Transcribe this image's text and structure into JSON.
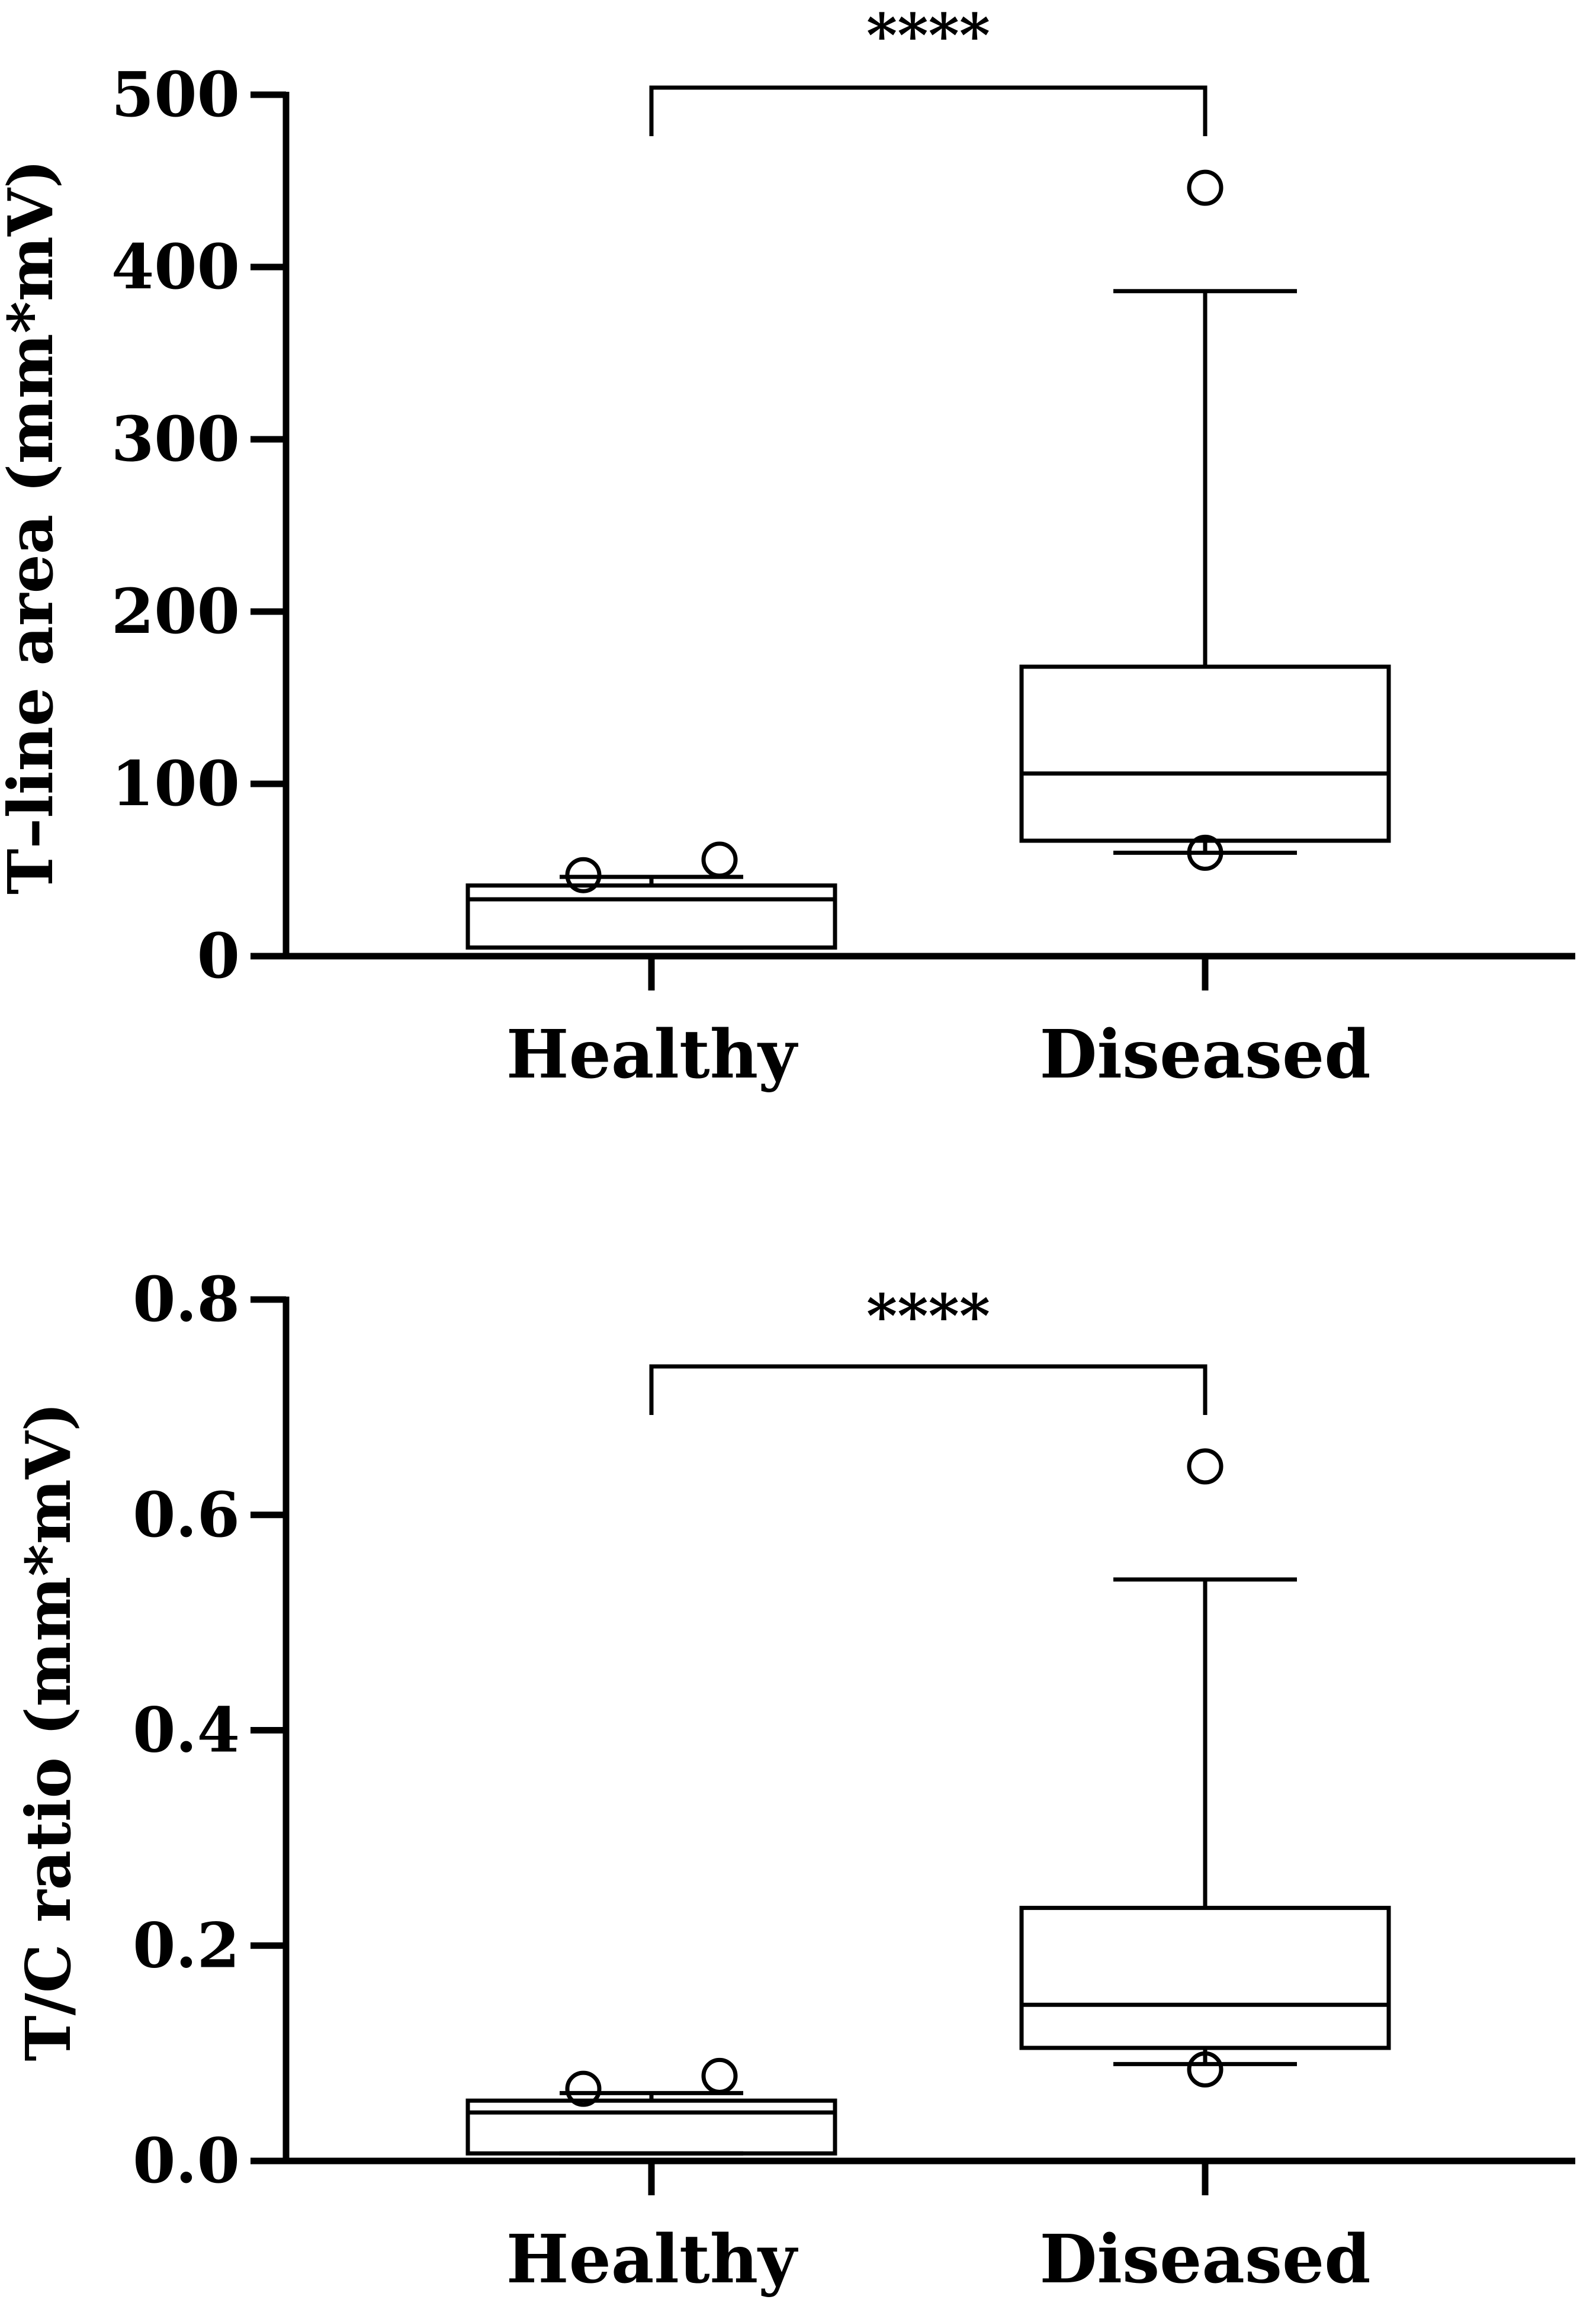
{
  "chart_data": [
    {
      "type": "box",
      "ylabel": "T–line area (mm*mV)",
      "ylim": [
        0,
        500
      ],
      "yticks": [
        "0",
        "100",
        "200",
        "300",
        "400",
        "500"
      ],
      "ytick_values": [
        0,
        100,
        200,
        300,
        400,
        500
      ],
      "categories": [
        "Healthy",
        "Diseased"
      ],
      "significance": {
        "label": "****",
        "between": [
          "Healthy",
          "Diseased"
        ]
      },
      "boxes": [
        {
          "category": "Healthy",
          "whisker_low": 5,
          "q1": 5,
          "median": 33,
          "q3": 41,
          "whisker_high": 46,
          "outliers": [
            47,
            56
          ]
        },
        {
          "category": "Diseased",
          "whisker_low": 60,
          "q1": 67,
          "median": 106,
          "q3": 168,
          "whisker_high": 386,
          "outliers": [
            60,
            446
          ]
        }
      ]
    },
    {
      "type": "box",
      "ylabel": "T/C ratio (mm*mV)",
      "ylim": [
        0,
        0.8
      ],
      "yticks": [
        "0.0",
        "0.2",
        "0.4",
        "0.6",
        "0.8"
      ],
      "ytick_values": [
        0,
        0.2,
        0.4,
        0.6,
        0.8
      ],
      "categories": [
        "Healthy",
        "Diseased"
      ],
      "significance": {
        "label": "****",
        "between": [
          "Healthy",
          "Diseased"
        ]
      },
      "boxes": [
        {
          "category": "Healthy",
          "whisker_low": 0.007,
          "q1": 0.007,
          "median": 0.045,
          "q3": 0.056,
          "whisker_high": 0.063,
          "outliers": [
            0.067,
            0.079
          ]
        },
        {
          "category": "Diseased",
          "whisker_low": 0.09,
          "q1": 0.105,
          "median": 0.145,
          "q3": 0.235,
          "whisker_high": 0.54,
          "outliers": [
            0.085,
            0.645
          ]
        }
      ]
    }
  ]
}
